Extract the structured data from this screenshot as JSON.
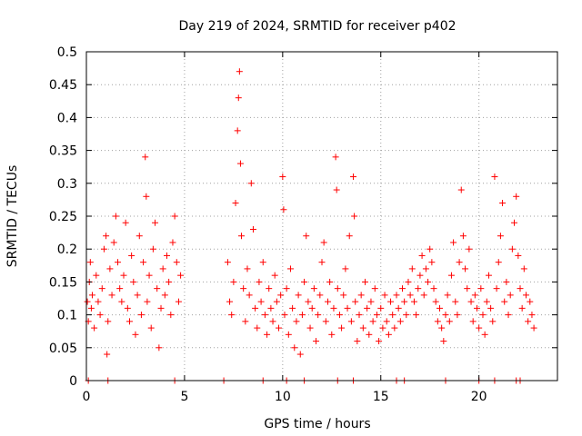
{
  "chart_data": {
    "type": "scatter",
    "title": "Day 219 of 2024, SRMTID for receiver p402",
    "xlabel": "GPS time / hours",
    "ylabel": "SRMTID / TECUs",
    "xlim": [
      0,
      24
    ],
    "ylim": [
      0,
      0.5
    ],
    "xticks": [
      0,
      5,
      10,
      15,
      20
    ],
    "xtick_labels": [
      "0",
      "5",
      "10",
      "15",
      "20"
    ],
    "yticks": [
      0,
      0.05,
      0.1,
      0.15,
      0.2,
      0.25,
      0.3,
      0.35,
      0.4,
      0.45,
      0.5
    ],
    "ytick_labels": [
      "0",
      "0.05",
      "0.1",
      "0.15",
      "0.2",
      "0.25",
      "0.3",
      "0.35",
      "0.4",
      "0.45",
      "0.5"
    ],
    "grid": true,
    "marker": "+",
    "series": [
      {
        "name": "SRMTID p402",
        "color": "#ff0000",
        "points": [
          [
            0.05,
            0.12
          ],
          [
            0.1,
            0.09
          ],
          [
            0.15,
            0.15
          ],
          [
            0.2,
            0.18
          ],
          [
            0.25,
            0.11
          ],
          [
            0.3,
            0.13
          ],
          [
            0.4,
            0.08
          ],
          [
            0.5,
            0.16
          ],
          [
            0.6,
            0.12
          ],
          [
            0.7,
            0.1
          ],
          [
            0.8,
            0.14
          ],
          [
            0.9,
            0.2
          ],
          [
            1.0,
            0.22
          ],
          [
            1.05,
            0.04
          ],
          [
            1.1,
            0.09
          ],
          [
            1.2,
            0.17
          ],
          [
            1.3,
            0.13
          ],
          [
            1.4,
            0.21
          ],
          [
            1.5,
            0.25
          ],
          [
            1.6,
            0.18
          ],
          [
            1.7,
            0.14
          ],
          [
            1.8,
            0.12
          ],
          [
            1.9,
            0.16
          ],
          [
            2.0,
            0.24
          ],
          [
            2.1,
            0.11
          ],
          [
            2.2,
            0.09
          ],
          [
            2.3,
            0.19
          ],
          [
            2.4,
            0.15
          ],
          [
            2.5,
            0.07
          ],
          [
            2.6,
            0.13
          ],
          [
            2.7,
            0.22
          ],
          [
            2.8,
            0.1
          ],
          [
            2.9,
            0.18
          ],
          [
            3.0,
            0.34
          ],
          [
            3.05,
            0.28
          ],
          [
            3.1,
            0.12
          ],
          [
            3.2,
            0.16
          ],
          [
            3.3,
            0.08
          ],
          [
            3.4,
            0.2
          ],
          [
            3.5,
            0.24
          ],
          [
            3.6,
            0.14
          ],
          [
            3.7,
            0.05
          ],
          [
            3.8,
            0.11
          ],
          [
            3.9,
            0.17
          ],
          [
            4.0,
            0.13
          ],
          [
            4.1,
            0.19
          ],
          [
            4.2,
            0.15
          ],
          [
            4.3,
            0.1
          ],
          [
            4.4,
            0.21
          ],
          [
            4.5,
            0.25
          ],
          [
            4.6,
            0.18
          ],
          [
            4.7,
            0.12
          ],
          [
            4.8,
            0.16
          ],
          [
            7.2,
            0.18
          ],
          [
            7.3,
            0.12
          ],
          [
            7.4,
            0.1
          ],
          [
            7.5,
            0.15
          ],
          [
            7.6,
            0.27
          ],
          [
            7.7,
            0.38
          ],
          [
            7.75,
            0.43
          ],
          [
            7.8,
            0.47
          ],
          [
            7.85,
            0.33
          ],
          [
            7.9,
            0.22
          ],
          [
            8.0,
            0.14
          ],
          [
            8.1,
            0.09
          ],
          [
            8.2,
            0.17
          ],
          [
            8.3,
            0.13
          ],
          [
            8.4,
            0.3
          ],
          [
            8.5,
            0.23
          ],
          [
            8.6,
            0.11
          ],
          [
            8.7,
            0.08
          ],
          [
            8.8,
            0.15
          ],
          [
            8.9,
            0.12
          ],
          [
            9.0,
            0.18
          ],
          [
            9.1,
            0.1
          ],
          [
            9.2,
            0.07
          ],
          [
            9.3,
            0.14
          ],
          [
            9.4,
            0.11
          ],
          [
            9.5,
            0.09
          ],
          [
            9.6,
            0.16
          ],
          [
            9.7,
            0.12
          ],
          [
            9.8,
            0.08
          ],
          [
            9.9,
            0.13
          ],
          [
            10.0,
            0.31
          ],
          [
            10.05,
            0.26
          ],
          [
            10.1,
            0.1
          ],
          [
            10.2,
            0.14
          ],
          [
            10.3,
            0.07
          ],
          [
            10.4,
            0.17
          ],
          [
            10.5,
            0.11
          ],
          [
            10.6,
            0.05
          ],
          [
            10.7,
            0.09
          ],
          [
            10.8,
            0.13
          ],
          [
            10.9,
            0.04
          ],
          [
            11.0,
            0.1
          ],
          [
            11.1,
            0.15
          ],
          [
            11.2,
            0.22
          ],
          [
            11.3,
            0.12
          ],
          [
            11.4,
            0.08
          ],
          [
            11.5,
            0.11
          ],
          [
            11.6,
            0.14
          ],
          [
            11.7,
            0.06
          ],
          [
            11.8,
            0.1
          ],
          [
            11.9,
            0.13
          ],
          [
            12.0,
            0.18
          ],
          [
            12.1,
            0.21
          ],
          [
            12.2,
            0.09
          ],
          [
            12.3,
            0.12
          ],
          [
            12.4,
            0.15
          ],
          [
            12.5,
            0.07
          ],
          [
            12.6,
            0.11
          ],
          [
            12.7,
            0.34
          ],
          [
            12.75,
            0.29
          ],
          [
            12.8,
            0.14
          ],
          [
            12.9,
            0.1
          ],
          [
            13.0,
            0.08
          ],
          [
            13.1,
            0.13
          ],
          [
            13.2,
            0.17
          ],
          [
            13.3,
            0.11
          ],
          [
            13.4,
            0.22
          ],
          [
            13.5,
            0.09
          ],
          [
            13.6,
            0.31
          ],
          [
            13.65,
            0.25
          ],
          [
            13.7,
            0.12
          ],
          [
            13.8,
            0.06
          ],
          [
            13.9,
            0.1
          ],
          [
            14.0,
            0.13
          ],
          [
            14.1,
            0.08
          ],
          [
            14.2,
            0.15
          ],
          [
            14.3,
            0.11
          ],
          [
            14.4,
            0.07
          ],
          [
            14.5,
            0.12
          ],
          [
            14.6,
            0.09
          ],
          [
            14.7,
            0.14
          ],
          [
            14.8,
            0.1
          ],
          [
            14.9,
            0.06
          ],
          [
            15.0,
            0.11
          ],
          [
            15.1,
            0.08
          ],
          [
            15.2,
            0.13
          ],
          [
            15.3,
            0.09
          ],
          [
            15.4,
            0.07
          ],
          [
            15.5,
            0.12
          ],
          [
            15.6,
            0.1
          ],
          [
            15.7,
            0.08
          ],
          [
            15.8,
            0.13
          ],
          [
            15.9,
            0.11
          ],
          [
            16.0,
            0.09
          ],
          [
            16.1,
            0.14
          ],
          [
            16.2,
            0.12
          ],
          [
            16.3,
            0.1
          ],
          [
            16.4,
            0.15
          ],
          [
            16.5,
            0.13
          ],
          [
            16.6,
            0.17
          ],
          [
            16.7,
            0.12
          ],
          [
            16.8,
            0.1
          ],
          [
            16.9,
            0.14
          ],
          [
            17.0,
            0.16
          ],
          [
            17.1,
            0.19
          ],
          [
            17.2,
            0.13
          ],
          [
            17.3,
            0.17
          ],
          [
            17.4,
            0.15
          ],
          [
            17.5,
            0.2
          ],
          [
            17.6,
            0.18
          ],
          [
            17.7,
            0.14
          ],
          [
            17.8,
            0.12
          ],
          [
            17.9,
            0.09
          ],
          [
            18.0,
            0.11
          ],
          [
            18.1,
            0.08
          ],
          [
            18.2,
            0.06
          ],
          [
            18.3,
            0.1
          ],
          [
            18.4,
            0.13
          ],
          [
            18.5,
            0.09
          ],
          [
            18.6,
            0.16
          ],
          [
            18.7,
            0.21
          ],
          [
            18.8,
            0.12
          ],
          [
            18.9,
            0.1
          ],
          [
            19.0,
            0.18
          ],
          [
            19.1,
            0.29
          ],
          [
            19.2,
            0.22
          ],
          [
            19.3,
            0.17
          ],
          [
            19.4,
            0.14
          ],
          [
            19.5,
            0.2
          ],
          [
            19.6,
            0.12
          ],
          [
            19.7,
            0.09
          ],
          [
            19.8,
            0.13
          ],
          [
            19.9,
            0.11
          ],
          [
            20.0,
            0.08
          ],
          [
            20.1,
            0.14
          ],
          [
            20.2,
            0.1
          ],
          [
            20.3,
            0.07
          ],
          [
            20.4,
            0.12
          ],
          [
            20.5,
            0.16
          ],
          [
            20.6,
            0.11
          ],
          [
            20.7,
            0.09
          ],
          [
            20.8,
            0.31
          ],
          [
            20.9,
            0.14
          ],
          [
            21.0,
            0.18
          ],
          [
            21.1,
            0.22
          ],
          [
            21.2,
            0.27
          ],
          [
            21.3,
            0.12
          ],
          [
            21.4,
            0.15
          ],
          [
            21.5,
            0.1
          ],
          [
            21.6,
            0.13
          ],
          [
            21.7,
            0.2
          ],
          [
            21.8,
            0.24
          ],
          [
            21.9,
            0.28
          ],
          [
            22.0,
            0.19
          ],
          [
            22.1,
            0.14
          ],
          [
            22.2,
            0.11
          ],
          [
            22.3,
            0.17
          ],
          [
            22.4,
            0.13
          ],
          [
            22.5,
            0.09
          ],
          [
            22.6,
            0.12
          ],
          [
            22.7,
            0.1
          ],
          [
            22.8,
            0.08
          ]
        ]
      }
    ],
    "zero_points_x": [
      0.1,
      1.1,
      4.5,
      7.0,
      9.0,
      10.2,
      11.1,
      12.8,
      13.6,
      15.8,
      16.2,
      18.3,
      20.0,
      20.8,
      21.9,
      22.1
    ]
  }
}
